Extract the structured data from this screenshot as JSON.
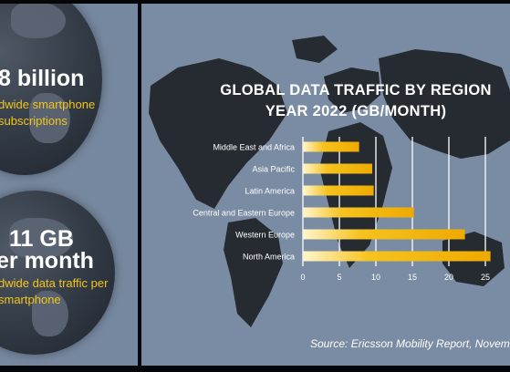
{
  "left": {
    "stats": [
      {
        "value": "8 billion",
        "description": [
          "dwide smartphone",
          "subscriptions"
        ]
      },
      {
        "value": "11 GB",
        "value2": "er month",
        "description": [
          "dwide data traffic per",
          "smartphone"
        ]
      }
    ]
  },
  "source": "Source: Ericsson Mobility Report, Novemb",
  "colors": {
    "accent": "#f3c51a",
    "bar": "#f0b400",
    "background": "#7a8ca3",
    "land": "#262b31"
  },
  "chart_data": {
    "type": "bar",
    "orientation": "horizontal",
    "title_lines": [
      "GLOBAL DATA TRAFFIC BY REGION",
      "YEAR 2022 (GB/MONTH)"
    ],
    "categories": [
      "Middle East and Africa",
      "Asia Pacific",
      "Latin America",
      "Central and Eastern Europe",
      "Western Europe",
      "North America"
    ],
    "values": [
      7.7,
      9.5,
      9.7,
      15.2,
      22.2,
      25.7
    ],
    "xlim": [
      0,
      25
    ],
    "xticks": [
      0,
      5,
      10,
      15,
      20,
      25
    ],
    "grid": "vertical"
  }
}
